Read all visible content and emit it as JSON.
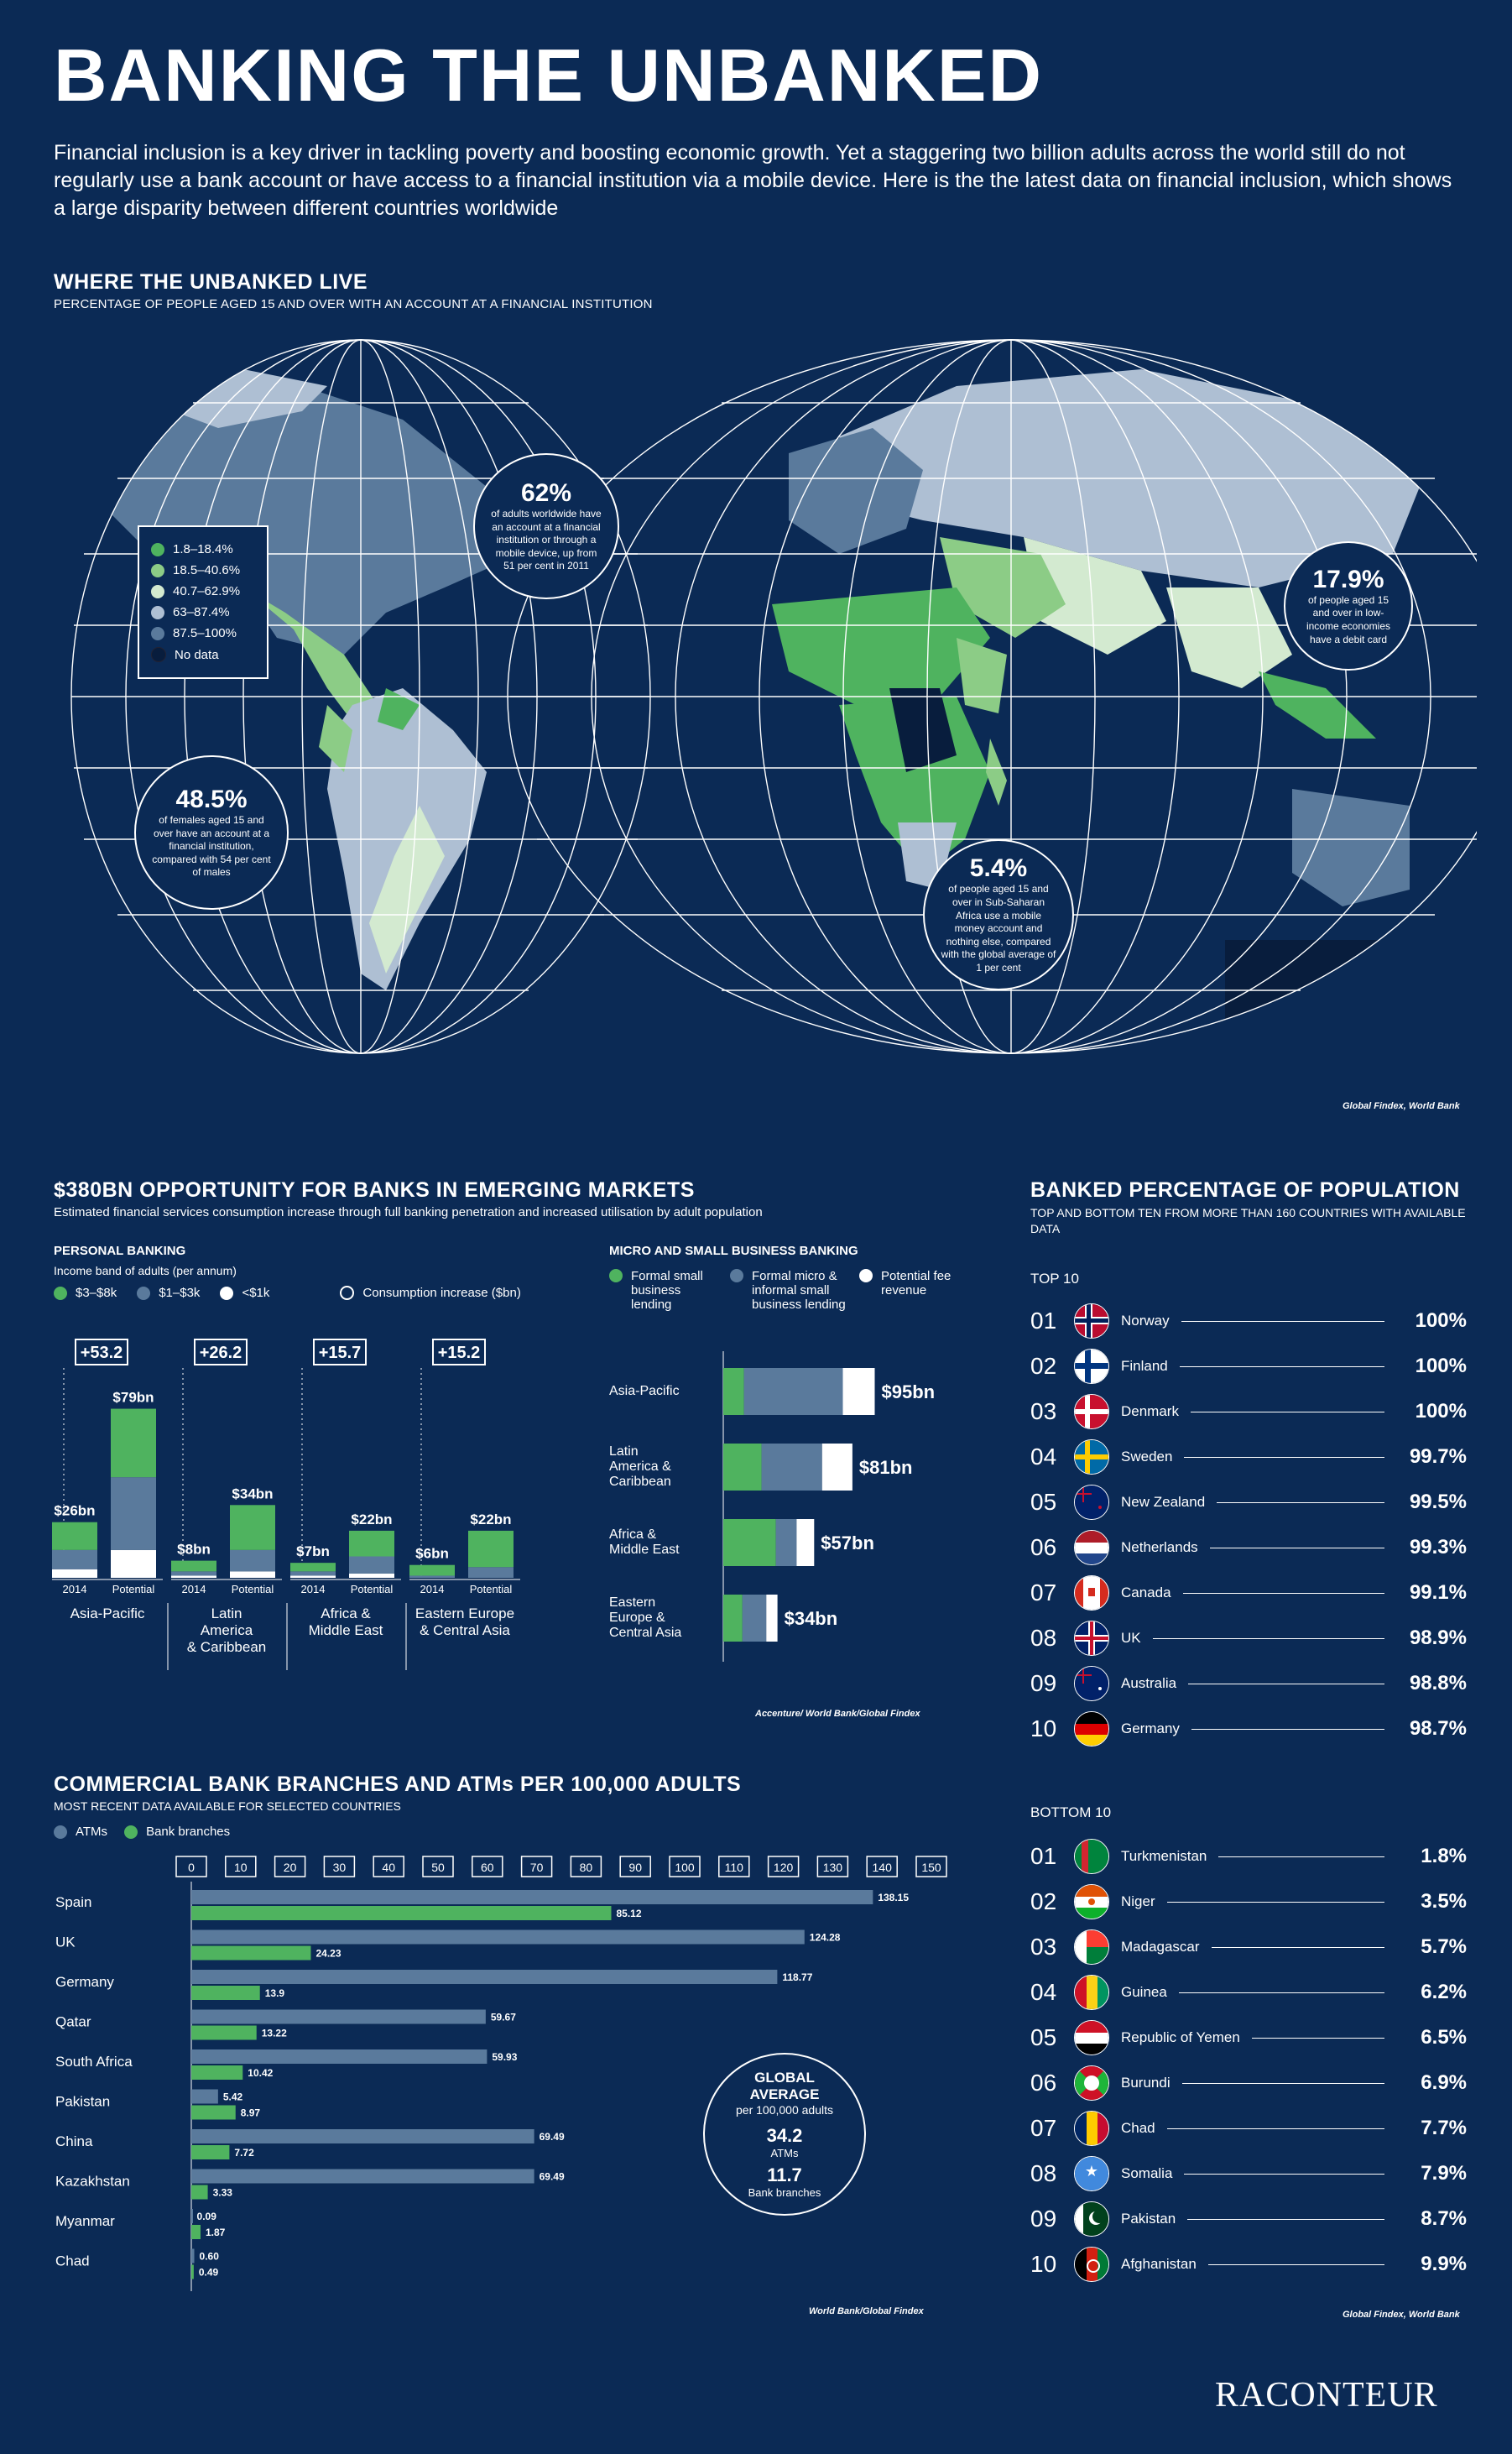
{
  "header": {
    "title": "BANKING THE UNBANKED",
    "intro": "Financial inclusion is a key driver in tackling poverty and boosting economic growth. Yet a staggering two billion adults across the world still do not regularly use a bank account or have access to a financial institution via a mobile device. Here is the the latest data on financial inclusion, which shows a large disparity between different countries worldwide"
  },
  "colors": {
    "background": "#0b2a55",
    "green": "#4fb35f",
    "blue_grey": "#5a7a9c",
    "white": "#ffffff",
    "light_green": "#b5dcae",
    "light_blue": "#9cb3cc",
    "dark": "#0b2a55"
  },
  "map_section": {
    "title": "WHERE THE UNBANKED LIVE",
    "subtitle": "PERCENTAGE OF PEOPLE AGED 15 AND OVER WITH AN ACCOUNT AT A FINANCIAL INSTITUTION",
    "legend": [
      {
        "label": "1.8–18.4%",
        "color": "#4fb35f"
      },
      {
        "label": "18.5–40.6%",
        "color": "#8ccc86"
      },
      {
        "label": "40.7–62.9%",
        "color": "#d3ead0"
      },
      {
        "label": "63–87.4%",
        "color": "#aebfd3"
      },
      {
        "label": "87.5–100%",
        "color": "#5a7a9c"
      },
      {
        "label": "No data",
        "color": "#081d3d"
      }
    ],
    "callouts": [
      {
        "big": "62%",
        "text": "of adults worldwide have an account at a financial institution or through a mobile device, up from 51 per cent in 2011"
      },
      {
        "big": "48.5%",
        "text": "of females aged 15 and over have an account at a financial institution, compared with 54 per cent of males"
      },
      {
        "big": "5.4%",
        "text": "of people aged 15 and over in Sub-Saharan Africa use a mobile money account and nothing else, compared with the global average of 1 per cent"
      },
      {
        "big": "17.9%",
        "text": "of people aged 15 and over in low-income economies have a debit card"
      }
    ],
    "source": "Global Findex, World Bank"
  },
  "opportunity_section": {
    "title": "$380BN OPPORTUNITY FOR BANKS IN EMERGING MARKETS",
    "subtitle": "Estimated financial services consumption increase through full banking penetration and increased utilisation by adult population",
    "source": "Accenture/ World Bank/Global Findex"
  },
  "chart_data": [
    {
      "type": "bar",
      "title": "PERSONAL BANKING",
      "subtitle": "Income band of adults (per annum)",
      "legend": [
        "$3–$8k",
        "$1–$3k",
        "<$1k",
        "Consumption increase ($bn)"
      ],
      "groups": [
        {
          "region": "Asia-Pacific",
          "increase": "+53.2",
          "bars": [
            {
              "label": "2014",
              "total": "$26bn",
              "segments": [
                13,
                9,
                4
              ]
            },
            {
              "label": "Potential",
              "total": "$79bn",
              "segments": [
                32,
                34,
                13
              ]
            }
          ]
        },
        {
          "region": "Latin America & Caribbean",
          "increase": "+26.2",
          "bars": [
            {
              "label": "2014",
              "total": "$8bn",
              "segments": [
                5,
                2,
                1
              ]
            },
            {
              "label": "Potential",
              "total": "$34bn",
              "segments": [
                21,
                10,
                3
              ]
            }
          ]
        },
        {
          "region": "Africa & Middle East",
          "increase": "+15.7",
          "bars": [
            {
              "label": "2014",
              "total": "$7bn",
              "segments": [
                4,
                2,
                1
              ]
            },
            {
              "label": "Potential",
              "total": "$22bn",
              "segments": [
                12,
                8,
                2
              ]
            }
          ]
        },
        {
          "region": "Eastern Europe & Central Asia",
          "increase": "+15.2",
          "bars": [
            {
              "label": "2014",
              "total": "$6bn",
              "segments": [
                5,
                1,
                0
              ]
            },
            {
              "label": "Potential",
              "total": "$22bn",
              "segments": [
                17,
                5,
                0
              ]
            }
          ]
        }
      ]
    },
    {
      "type": "bar",
      "title": "MICRO AND SMALL BUSINESS BANKING",
      "legend": [
        "Formal small business lending",
        "Formal micro & informal small business lending",
        "Potential fee revenue"
      ],
      "categories": [
        "Asia-Pacific",
        "Latin America & Caribbean",
        "Africa & Middle East",
        "Eastern Europe & Central Asia"
      ],
      "totals": [
        "$95bn",
        "$81bn",
        "$57bn",
        "$34bn"
      ],
      "segments": [
        [
          13,
          62,
          20
        ],
        [
          24,
          38,
          19
        ],
        [
          33,
          13,
          11
        ],
        [
          12,
          15,
          7
        ]
      ]
    },
    {
      "type": "bar",
      "title": "COMMERCIAL BANK BRANCHES AND ATMs PER 100,000 ADULTS",
      "subtitle": "MOST RECENT DATA AVAILABLE FOR SELECTED COUNTRIES",
      "legend": [
        "ATMs",
        "Bank branches"
      ],
      "xlim": [
        0,
        150
      ],
      "ticks": [
        "0",
        "10",
        "20",
        "30",
        "40",
        "50",
        "60",
        "70",
        "80",
        "90",
        "100",
        "110",
        "120",
        "130",
        "140",
        "150"
      ],
      "categories": [
        "Spain",
        "UK",
        "Germany",
        "Qatar",
        "South Africa",
        "Pakistan",
        "China",
        "Kazakhstan",
        "Myanmar",
        "Chad"
      ],
      "series": [
        {
          "name": "ATMs",
          "values": [
            138.15,
            124.28,
            118.77,
            59.67,
            59.93,
            5.42,
            69.49,
            69.49,
            0.09,
            0.6
          ],
          "labels": [
            "138.15",
            "124.28",
            "118.77",
            "59.67",
            "59.93",
            "5.42",
            "69.49",
            "69.49",
            "0.09",
            "0.60"
          ]
        },
        {
          "name": "Bank branches",
          "values": [
            85.12,
            24.23,
            13.9,
            13.22,
            10.42,
            8.97,
            7.72,
            3.33,
            1.87,
            0.49
          ],
          "labels": [
            "85.12",
            "24.23",
            "13.9",
            "13.22",
            "10.42",
            "8.97",
            "7.72",
            "3.33",
            "1.87",
            "0.49"
          ]
        }
      ]
    }
  ],
  "global_average": {
    "title": "GLOBAL AVERAGE",
    "sub": "per 100,000 adults",
    "atm_value": "34.2",
    "atm_label": "ATMs",
    "branch_value": "11.7",
    "branch_label": "Bank branches"
  },
  "branches_source": "World Bank/Global Findex",
  "banked": {
    "title": "BANKED PERCENTAGE OF POPULATION",
    "subtitle": "TOP AND BOTTOM TEN FROM MORE THAN 160 COUNTRIES WITH AVAILABLE DATA",
    "top_label": "TOP 10",
    "bottom_label": "BOTTOM 10",
    "source": "Global Findex, World Bank",
    "top": [
      {
        "rank": "01",
        "country": "Norway",
        "value": "100%",
        "flag": "norway"
      },
      {
        "rank": "02",
        "country": "Finland",
        "value": "100%",
        "flag": "finland"
      },
      {
        "rank": "03",
        "country": "Denmark",
        "value": "100%",
        "flag": "denmark"
      },
      {
        "rank": "04",
        "country": "Sweden",
        "value": "99.7%",
        "flag": "sweden"
      },
      {
        "rank": "05",
        "country": "New Zealand",
        "value": "99.5%",
        "flag": "new-zealand"
      },
      {
        "rank": "06",
        "country": "Netherlands",
        "value": "99.3%",
        "flag": "netherlands"
      },
      {
        "rank": "07",
        "country": "Canada",
        "value": "99.1%",
        "flag": "canada"
      },
      {
        "rank": "08",
        "country": "UK",
        "value": "98.9%",
        "flag": "uk"
      },
      {
        "rank": "09",
        "country": "Australia",
        "value": "98.8%",
        "flag": "australia"
      },
      {
        "rank": "10",
        "country": "Germany",
        "value": "98.7%",
        "flag": "germany"
      }
    ],
    "bottom": [
      {
        "rank": "01",
        "country": "Turkmenistan",
        "value": "1.8%",
        "flag": "turkmenistan"
      },
      {
        "rank": "02",
        "country": "Niger",
        "value": "3.5%",
        "flag": "niger"
      },
      {
        "rank": "03",
        "country": "Madagascar",
        "value": "5.7%",
        "flag": "madagascar"
      },
      {
        "rank": "04",
        "country": "Guinea",
        "value": "6.2%",
        "flag": "guinea"
      },
      {
        "rank": "05",
        "country": "Republic of Yemen",
        "value": "6.5%",
        "flag": "yemen"
      },
      {
        "rank": "06",
        "country": "Burundi",
        "value": "6.9%",
        "flag": "burundi"
      },
      {
        "rank": "07",
        "country": "Chad",
        "value": "7.7%",
        "flag": "chad"
      },
      {
        "rank": "08",
        "country": "Somalia",
        "value": "7.9%",
        "flag": "somalia"
      },
      {
        "rank": "09",
        "country": "Pakistan",
        "value": "8.7%",
        "flag": "pakistan"
      },
      {
        "rank": "10",
        "country": "Afghanistan",
        "value": "9.9%",
        "flag": "afghanistan"
      }
    ]
  },
  "brand": "RACONTEUR"
}
